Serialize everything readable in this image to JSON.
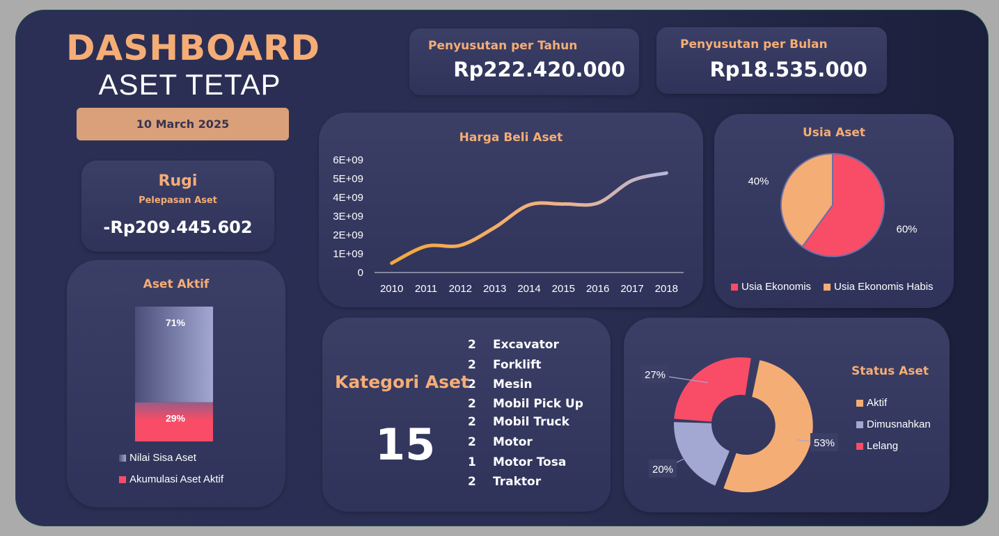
{
  "header": {
    "title": "DASHBOARD",
    "subtitle": "ASET TETAP",
    "date": "10 March 2025"
  },
  "kpi": {
    "yearly": {
      "label": "Penyusutan per Tahun",
      "value": "Rp222.420.000"
    },
    "monthly": {
      "label": "Penyusutan per Bulan",
      "value": "Rp18.535.000"
    }
  },
  "rugi": {
    "title": "Rugi",
    "subtitle": "Pelepasan Aset",
    "value": "-Rp209.445.602"
  },
  "colors": {
    "accent": "#f5ad76",
    "red": "#f94c66",
    "lavender": "#a3a8d3",
    "orange": "#f5ad76",
    "line_start": "#f2a93b",
    "line_end": "#b3b6dc"
  },
  "categories": {
    "title": "Kategori Aset",
    "total": "15",
    "items": [
      {
        "count": "2",
        "name": "Excavator"
      },
      {
        "count": "2",
        "name": "Forklift"
      },
      {
        "count": "2",
        "name": "Mesin"
      },
      {
        "count": "2",
        "name": "Mobil Pick Up"
      },
      {
        "count": "2",
        "name": "Mobil Truck"
      },
      {
        "count": "2",
        "name": "Motor"
      },
      {
        "count": "1",
        "name": "Motor Tosa"
      },
      {
        "count": "2",
        "name": "Traktor"
      }
    ]
  },
  "chart_data": [
    {
      "id": "aset-aktif",
      "type": "bar",
      "title": "Aset Aktif",
      "stacked": true,
      "categories": [
        ""
      ],
      "series": [
        {
          "name": "Akumulasi Aset  Aktif",
          "values": [
            29
          ],
          "label": "29%"
        },
        {
          "name": "Nilai Sisa Aset",
          "values": [
            71
          ],
          "label": "71%"
        }
      ],
      "legend_position": "bottom"
    },
    {
      "id": "harga-beli",
      "type": "line",
      "title": "Harga Beli Aset",
      "categories": [
        "2010",
        "2011",
        "2012",
        "2013",
        "2014",
        "2015",
        "2016",
        "2017",
        "2018"
      ],
      "series": [
        {
          "values": [
            500000000,
            1400000000,
            1450000000,
            2400000000,
            3600000000,
            3650000000,
            3700000000,
            4900000000,
            5300000000
          ]
        }
      ],
      "yticks": [
        "0",
        "1E+09",
        "2E+09",
        "3E+09",
        "4E+09",
        "5E+09",
        "6E+09"
      ],
      "ylim": [
        0,
        6000000000
      ],
      "grid": false
    },
    {
      "id": "usia-aset",
      "type": "pie",
      "title": "Usia Aset",
      "slices": [
        {
          "name": "Usia Ekonomis",
          "value": 60,
          "label": "60%"
        },
        {
          "name": "Usia Ekonomis Habis",
          "value": 40,
          "label": "40%"
        }
      ],
      "legend_position": "bottom"
    },
    {
      "id": "status-aset",
      "type": "pie",
      "donut": true,
      "title": "Status Aset",
      "slices": [
        {
          "name": "Aktif",
          "value": 53,
          "label": "53%"
        },
        {
          "name": "Dimusnahkan",
          "value": 20,
          "label": "20%"
        },
        {
          "name": "Lelang",
          "value": 27,
          "label": "27%"
        }
      ],
      "legend_position": "right"
    }
  ]
}
